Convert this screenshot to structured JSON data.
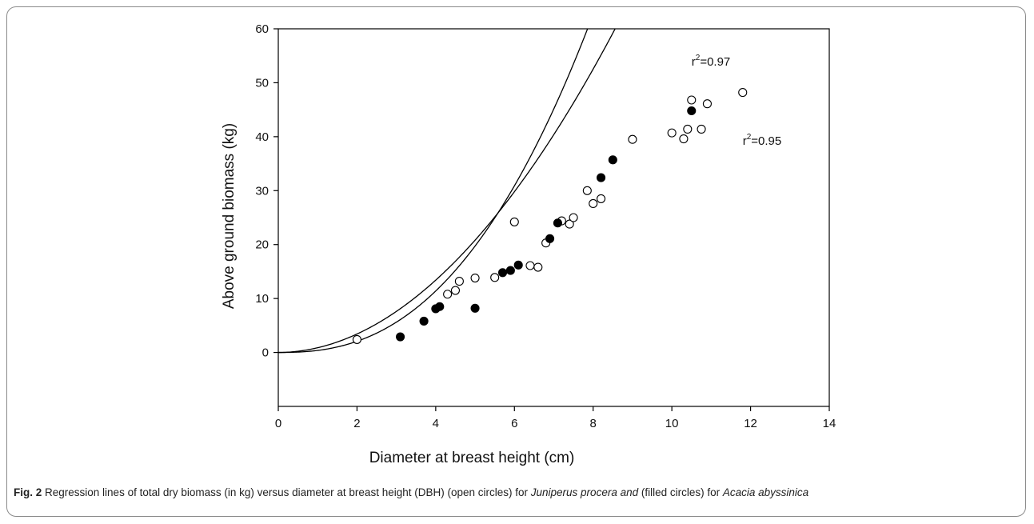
{
  "caption": {
    "label": "Fig. 2",
    "part1": " Regression lines of total dry biomass (in kg) versus diameter at breast height (DBH) (open circles) for ",
    "species1": "Juniperus procera and",
    "part2": " (filled circles) for ",
    "species2": "Acacia abyssinica"
  },
  "chart_data": {
    "type": "scatter",
    "xlabel": "Diameter at breast height (cm)",
    "ylabel": "Above ground biomass (kg)",
    "xlim": [
      0,
      14
    ],
    "ylim": [
      -10,
      60
    ],
    "xticks": [
      0,
      2,
      4,
      6,
      8,
      10,
      12,
      14
    ],
    "yticks": [
      0,
      10,
      20,
      30,
      40,
      50,
      60
    ],
    "grid": false,
    "series": [
      {
        "marker": "open-circle",
        "points": [
          [
            2.0,
            2.4
          ],
          [
            4.3,
            10.8
          ],
          [
            4.5,
            11.5
          ],
          [
            4.6,
            13.2
          ],
          [
            5.0,
            13.8
          ],
          [
            5.5,
            13.9
          ],
          [
            6.0,
            24.2
          ],
          [
            6.4,
            16.1
          ],
          [
            6.6,
            15.8
          ],
          [
            6.8,
            20.3
          ],
          [
            7.2,
            24.4
          ],
          [
            7.4,
            23.8
          ],
          [
            7.5,
            25.0
          ],
          [
            7.85,
            30.0
          ],
          [
            8.0,
            27.6
          ],
          [
            8.2,
            28.5
          ],
          [
            9.0,
            39.5
          ],
          [
            10.0,
            40.7
          ],
          [
            10.3,
            39.6
          ],
          [
            10.4,
            41.4
          ],
          [
            10.5,
            46.8
          ],
          [
            10.75,
            41.4
          ],
          [
            10.9,
            46.1
          ],
          [
            11.8,
            48.2
          ]
        ]
      },
      {
        "marker": "filled-circle",
        "points": [
          [
            3.1,
            2.9
          ],
          [
            3.7,
            5.8
          ],
          [
            4.0,
            8.1
          ],
          [
            4.1,
            8.5
          ],
          [
            5.0,
            8.2
          ],
          [
            5.7,
            14.8
          ],
          [
            5.9,
            15.2
          ],
          [
            6.1,
            16.2
          ],
          [
            6.9,
            21.1
          ],
          [
            7.1,
            24.0
          ],
          [
            8.2,
            32.4
          ],
          [
            8.5,
            35.7
          ],
          [
            10.5,
            44.8
          ]
        ]
      }
    ],
    "curves": [
      {
        "coef": 0.3764,
        "exponent": 2.46
      },
      {
        "coef": 0.8736,
        "exponent": 1.97
      }
    ],
    "annotations": [
      {
        "r": "r",
        "sup": "2",
        "rest": "=0.97",
        "x": 10.5,
        "y": 53.2
      },
      {
        "r": "r",
        "sup": "2",
        "rest": "=0.95",
        "x": 11.8,
        "y": 38.5
      }
    ]
  }
}
